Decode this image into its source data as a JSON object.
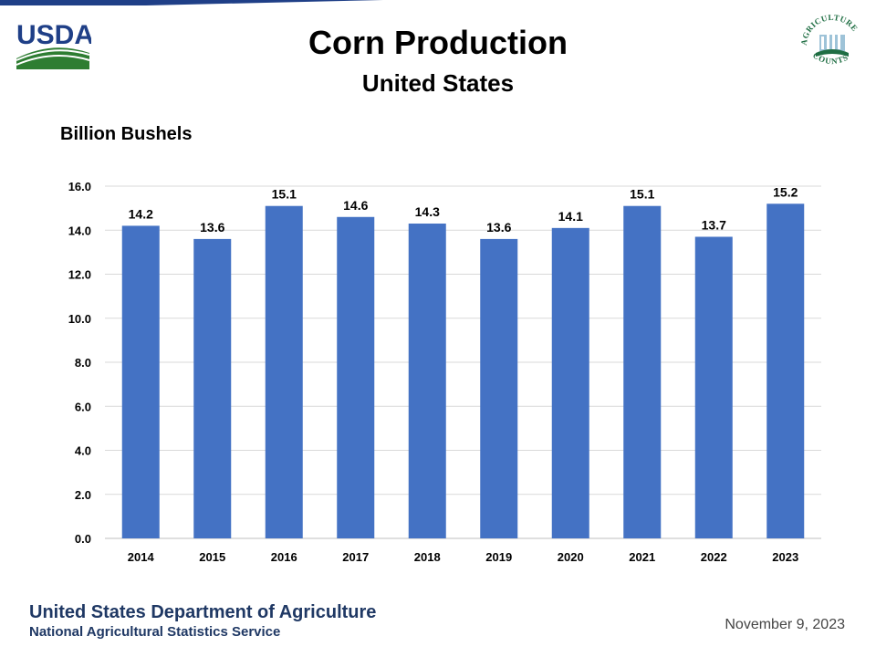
{
  "header": {
    "title": "Corn Production",
    "subtitle": "United States"
  },
  "logos": {
    "usda_text": "USDA",
    "agriculture_counts_top": "AGRICULTURE",
    "agriculture_counts_bottom": "COUNTS"
  },
  "footer": {
    "department": "United States Department of Agriculture",
    "agency": "National Agricultural Statistics Service",
    "date": "November 9, 2023"
  },
  "colors": {
    "bar": "#4472c4",
    "gridline": "#d9d9d9",
    "usda_blue": "#1f3f87",
    "usda_green": "#2e7d32",
    "footer_text": "#1f3864"
  },
  "chart_data": {
    "type": "bar",
    "title": "Corn Production",
    "subtitle": "United States",
    "ylabel": "Billion Bushels",
    "xlabel": "",
    "categories": [
      "2014",
      "2015",
      "2016",
      "2017",
      "2018",
      "2019",
      "2020",
      "2021",
      "2022",
      "2023"
    ],
    "values": [
      14.2,
      13.6,
      15.1,
      14.6,
      14.3,
      13.6,
      14.1,
      15.1,
      13.7,
      15.2
    ],
    "value_labels": [
      "14.2",
      "13.6",
      "15.1",
      "14.6",
      "14.3",
      "13.6",
      "14.1",
      "15.1",
      "13.7",
      "15.2"
    ],
    "ylim": [
      0,
      16
    ],
    "yticks": [
      "0.0",
      "2.0",
      "4.0",
      "6.0",
      "8.0",
      "10.0",
      "12.0",
      "14.0",
      "16.0"
    ],
    "grid": true,
    "legend": "none"
  }
}
